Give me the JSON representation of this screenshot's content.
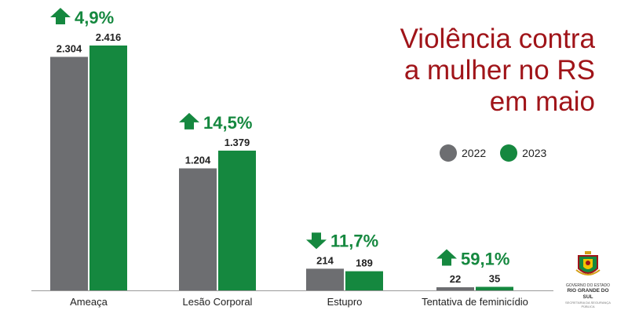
{
  "title_lines": [
    "Violência contra",
    "a mulher no RS",
    "em maio"
  ],
  "legend": [
    {
      "label": "2022",
      "color": "#6d6e71"
    },
    {
      "label": "2023",
      "color": "#15883f"
    }
  ],
  "logo": {
    "line1": "GOVERNO DO ESTADO",
    "line2": "RIO GRANDE DO SUL",
    "line3": "SECRETARIA DA SEGURANÇA PÚBLICA"
  },
  "chart_data": {
    "type": "bar",
    "categories": [
      "Ameaça",
      "Lesão Corporal",
      "Estupro",
      "Tentativa de feminicídio"
    ],
    "series": [
      {
        "name": "2022",
        "values": [
          2304,
          1204,
          214,
          22
        ],
        "labels": [
          "2.304",
          "1.204",
          "214",
          "22"
        ],
        "color": "#6d6e71"
      },
      {
        "name": "2023",
        "values": [
          2416,
          1379,
          189,
          35
        ],
        "labels": [
          "2.416",
          "1.379",
          "189",
          "35"
        ],
        "color": "#15883f"
      }
    ],
    "changes": [
      {
        "text": "4,9%",
        "direction": "up"
      },
      {
        "text": "14,5%",
        "direction": "up"
      },
      {
        "text": "11,7%",
        "direction": "down"
      },
      {
        "text": "59,1%",
        "direction": "up"
      }
    ],
    "change_color": "#15883f",
    "ylim": [
      0,
      2500
    ],
    "grid": false
  }
}
